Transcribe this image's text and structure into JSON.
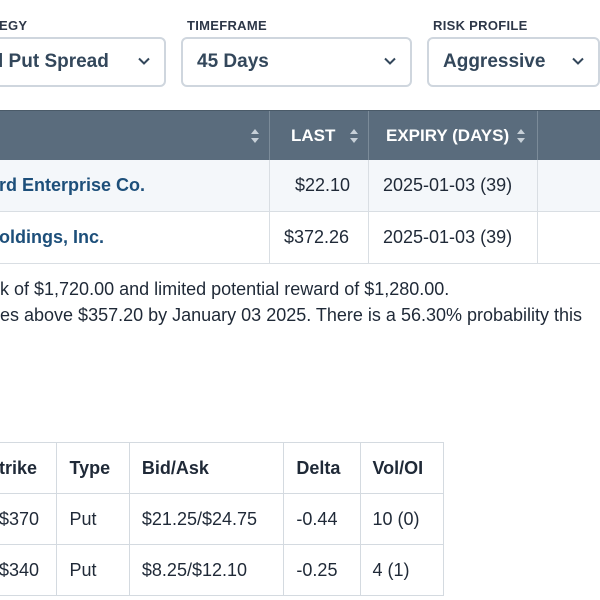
{
  "filters": {
    "strategy": {
      "label": "EGY",
      "value": "l Put Spread"
    },
    "timeframe": {
      "label": "TIMEFRAME",
      "value": "45 Days"
    },
    "risk_profile": {
      "label": "RISK PROFILE",
      "value": "Aggressive"
    }
  },
  "results_table": {
    "columns": [
      "LAST",
      "EXPIRY (DAYS)"
    ],
    "rows": [
      {
        "name": "rd Enterprise Co.",
        "last": "$22.10",
        "expiry": "2025-01-03 (39)"
      },
      {
        "name": "oldings, Inc.",
        "last": "$372.26",
        "expiry": "2025-01-03 (39)"
      }
    ]
  },
  "summary": {
    "line1": "k of $1,720.00 and limited potential reward of $1,280.00.",
    "line2": "es above $357.20 by January 03 2025. There is a 56.30% probability this"
  },
  "legs_table": {
    "columns": [
      "trike",
      "Type",
      "Bid/Ask",
      "Delta",
      "Vol/OI"
    ],
    "rows": [
      {
        "strike": "$370",
        "type": "Put",
        "bid_ask": "$21.25/$24.75",
        "delta": "-0.44",
        "vol_oi": "10 (0)"
      },
      {
        "strike": "$340",
        "type": "Put",
        "bid_ask": "$8.25/$12.10",
        "delta": "-0.25",
        "vol_oi": "4 (1)"
      }
    ]
  },
  "colors": {
    "header_bg": "#5a6c7d",
    "link": "#1d4f7a",
    "border": "#d9dee3"
  }
}
